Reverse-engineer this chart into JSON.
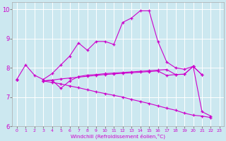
{
  "xlabel": "Windchill (Refroidissement éolien,°C)",
  "x": [
    0,
    1,
    2,
    3,
    4,
    5,
    6,
    7,
    8,
    9,
    10,
    11,
    12,
    13,
    14,
    15,
    16,
    17,
    18,
    19,
    20,
    21,
    22,
    23
  ],
  "line1": [
    7.6,
    8.1,
    7.75,
    7.6,
    7.8,
    8.1,
    8.4,
    8.85,
    8.6,
    8.9,
    8.9,
    8.8,
    9.55,
    9.7,
    9.95,
    9.95,
    8.9,
    8.2,
    8.0,
    7.95,
    8.05,
    6.5,
    6.35,
    null
  ],
  "line2": [
    7.6,
    null,
    null,
    7.55,
    7.58,
    7.3,
    7.55,
    7.7,
    7.75,
    7.77,
    7.8,
    7.82,
    7.84,
    7.86,
    7.88,
    7.9,
    7.92,
    7.94,
    7.77,
    7.78,
    8.05,
    7.76,
    null,
    null
  ],
  "line3": [
    7.6,
    null,
    null,
    7.55,
    7.58,
    7.62,
    7.65,
    7.68,
    7.71,
    7.74,
    7.77,
    7.79,
    7.81,
    7.83,
    7.85,
    7.87,
    7.89,
    7.74,
    7.77,
    7.78,
    8.05,
    7.76,
    null,
    null
  ],
  "line4": [
    7.6,
    null,
    null,
    7.55,
    7.5,
    7.45,
    7.38,
    7.32,
    7.25,
    7.18,
    7.12,
    7.06,
    7.0,
    6.92,
    6.85,
    6.78,
    6.7,
    6.62,
    6.55,
    6.45,
    6.38,
    6.35,
    6.3,
    null
  ],
  "ylim": [
    6.0,
    10.25
  ],
  "yticks": [
    6,
    7,
    8,
    9,
    10
  ],
  "bg_color": "#cce8f0",
  "line_color": "#cc00cc",
  "grid_color": "#ffffff",
  "spine_color": "#aaaaaa"
}
